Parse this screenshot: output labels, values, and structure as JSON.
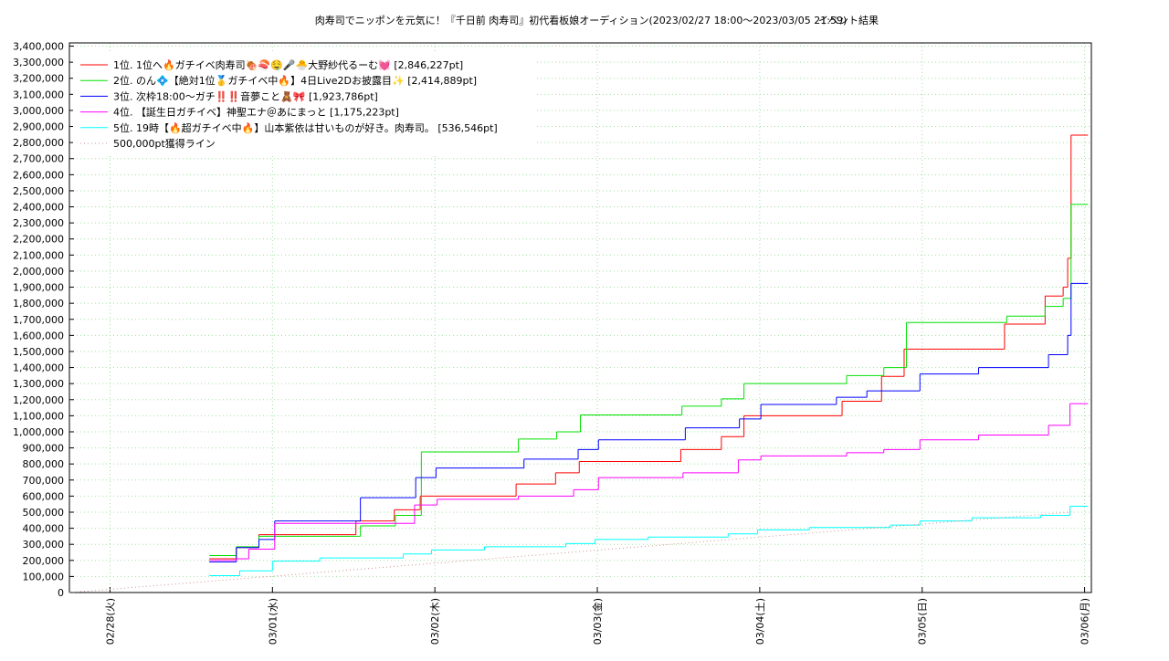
{
  "chart_data": {
    "type": "line",
    "title": "肉寿司でニッポンを元気に！『千日前 肉寿司』初代看板娘オーディション(2023/02/27 18:00～2023/03/05 21:59)",
    "subtitle": "イベント結果",
    "xlim": [
      "02/27 18:00",
      "03/06 01:00"
    ],
    "xticks": [
      {
        "value": "02/28 00:00",
        "label": "02/28(火)"
      },
      {
        "value": "03/01 00:00",
        "label": "03/01(水)"
      },
      {
        "value": "03/02 00:00",
        "label": "03/02(木)"
      },
      {
        "value": "03/03 00:00",
        "label": "03/03(金)"
      },
      {
        "value": "03/04 00:00",
        "label": "03/04(土)"
      },
      {
        "value": "03/05 00:00",
        "label": "03/05(日)"
      },
      {
        "value": "03/06 00:00",
        "label": "03/06(月)"
      }
    ],
    "ylim": [
      0,
      3420000
    ],
    "yticks": [
      0,
      {
        "value": 100000,
        "label": "100,000"
      },
      {
        "value": 200000,
        "label": "200,000"
      },
      {
        "value": 300000,
        "label": "300,000"
      },
      {
        "value": 400000,
        "label": "400,000"
      },
      {
        "value": 500000,
        "label": "500,000"
      },
      {
        "value": 600000,
        "label": "600,000"
      },
      {
        "value": 700000,
        "label": "700,000"
      },
      {
        "value": 800000,
        "label": "800,000"
      },
      {
        "value": 900000,
        "label": "900,000"
      },
      {
        "value": 1000000,
        "label": "1,000,000"
      },
      {
        "value": 1100000,
        "label": "1,100,000"
      },
      {
        "value": 1200000,
        "label": "1,200,000"
      },
      {
        "value": 1300000,
        "label": "1,300,000"
      },
      {
        "value": 1400000,
        "label": "1,400,000"
      },
      {
        "value": 1500000,
        "label": "1,500,000"
      },
      {
        "value": 1600000,
        "label": "1,600,000"
      },
      {
        "value": 1700000,
        "label": "1,700,000"
      },
      {
        "value": 1800000,
        "label": "1,800,000"
      },
      {
        "value": 1900000,
        "label": "1,900,000"
      },
      {
        "value": 2000000,
        "label": "2,000,000"
      },
      {
        "value": 2100000,
        "label": "2,100,000"
      },
      {
        "value": 2200000,
        "label": "2,200,000"
      },
      {
        "value": 2300000,
        "label": "2,300,000"
      },
      {
        "value": 2400000,
        "label": "2,400,000"
      },
      {
        "value": 2500000,
        "label": "2,500,000"
      },
      {
        "value": 2600000,
        "label": "2,600,000"
      },
      {
        "value": 2700000,
        "label": "2,700,000"
      },
      {
        "value": 2800000,
        "label": "2,800,000"
      },
      {
        "value": 2900000,
        "label": "2,900,000"
      },
      {
        "value": 3000000,
        "label": "3,000,000"
      },
      {
        "value": 3100000,
        "label": "3,100,000"
      },
      {
        "value": 3200000,
        "label": "3,200,000"
      },
      {
        "value": 3300000,
        "label": "3,300,000"
      },
      {
        "value": 3400000,
        "label": "3,400,000"
      }
    ],
    "grid": true,
    "legend": "top-left",
    "series": [
      {
        "name": "1位. 1位へ🔥ガチイベ肉寿司🍖🍣🤤🎤🐣大野紗代るーむ💓 [2,846,227pt]",
        "color": "#ff0000",
        "style": "steps",
        "x": [
          "02/28 14:40",
          "02/28 18:40",
          "02/28 22:00",
          "03/01 12:20",
          "03/01 18:00",
          "03/01 21:50",
          "03/02 12:00",
          "03/02 17:50",
          "03/02 21:20",
          "03/03 12:20",
          "03/03 18:20",
          "03/03 21:40",
          "03/04 12:10",
          "03/04 18:00",
          "03/04 21:20",
          "03/05 12:10",
          "03/05 18:10",
          "03/05 20:50",
          "03/05 21:30",
          "03/05 22:00",
          "03/06 00:30"
        ],
        "values": [
          210000,
          280000,
          360000,
          445000,
          515000,
          600000,
          675000,
          745000,
          815000,
          890000,
          970000,
          1100000,
          1190000,
          1345000,
          1515000,
          1670000,
          1845000,
          1900000,
          2080000,
          2846227,
          2846227
        ]
      },
      {
        "name": "2位. のん💠【絶対1位🥇ガチイベ中🔥】4日Live2Dお披露目✨ [2,414,889pt]",
        "color": "#00e000",
        "style": "steps",
        "x": [
          "02/28 14:40",
          "02/28 18:40",
          "02/28 22:00",
          "03/01 13:00",
          "03/01 18:10",
          "03/01 22:00",
          "03/02 12:20",
          "03/02 18:00",
          "03/02 21:30",
          "03/03 12:30",
          "03/03 18:20",
          "03/03 21:40",
          "03/04 12:50",
          "03/04 18:20",
          "03/04 21:40",
          "03/05 12:30",
          "03/05 18:10",
          "03/05 20:50",
          "03/05 22:00",
          "03/06 00:30"
        ],
        "values": [
          230000,
          285000,
          350000,
          415000,
          480000,
          875000,
          955000,
          1000000,
          1105000,
          1160000,
          1205000,
          1300000,
          1350000,
          1400000,
          1680000,
          1720000,
          1780000,
          1830000,
          2414889,
          2414889
        ]
      },
      {
        "name": "3位. 次枠18:00〜ガチ‼️‼️音夢こと🧸🎀 [1,923,786pt]",
        "color": "#0000ff",
        "style": "steps",
        "x": [
          "02/28 14:40",
          "02/28 18:40",
          "02/28 22:00",
          "03/01 00:20",
          "03/01 13:00",
          "03/01 21:10",
          "03/02 00:10",
          "03/02 13:10",
          "03/02 21:10",
          "03/03 00:10",
          "03/03 13:00",
          "03/03 21:00",
          "03/04 00:10",
          "03/04 11:20",
          "03/04 15:50",
          "03/04 23:40",
          "03/05 08:20",
          "03/05 18:40",
          "03/05 21:30",
          "03/05 22:00",
          "03/06 00:30"
        ],
        "values": [
          190000,
          280000,
          330000,
          445000,
          590000,
          715000,
          775000,
          830000,
          890000,
          950000,
          1025000,
          1080000,
          1170000,
          1215000,
          1255000,
          1360000,
          1400000,
          1480000,
          1600000,
          1923786,
          1923786
        ]
      },
      {
        "name": "4位. 【誕生日ガチイベ】神聖エナ＠あにまっと [1,175,223pt]",
        "color": "#ff00ff",
        "style": "steps",
        "x": [
          "02/28 14:40",
          "02/28 18:40",
          "02/28 20:30",
          "03/01 00:20",
          "03/01 21:00",
          "03/02 00:20",
          "03/02 12:20",
          "03/02 20:30",
          "03/03 00:10",
          "03/03 12:40",
          "03/03 20:50",
          "03/04 00:10",
          "03/04 12:50",
          "03/04 18:20",
          "03/04 23:40",
          "03/05 08:20",
          "03/05 18:40",
          "03/05 21:50",
          "03/06 00:30"
        ],
        "values": [
          200000,
          210000,
          270000,
          430000,
          545000,
          580000,
          600000,
          640000,
          715000,
          745000,
          825000,
          850000,
          870000,
          890000,
          950000,
          980000,
          1040000,
          1175223,
          1175223
        ]
      },
      {
        "name": "5位. 19時【🔥超ガチイベ中🔥】山本紫依は甘いものが好き。肉寿司。 [536,546pt]",
        "color": "#00ffff",
        "style": "steps",
        "x": [
          "02/28 14:40",
          "02/28 19:10",
          "03/01 00:00",
          "03/01 07:00",
          "03/01 19:20",
          "03/01 23:30",
          "03/02 07:20",
          "03/02 19:20",
          "03/02 23:40",
          "03/03 07:30",
          "03/03 19:20",
          "03/03 23:40",
          "03/04 07:20",
          "03/04 19:20",
          "03/04 23:40",
          "03/05 07:20",
          "03/05 17:30",
          "03/05 21:50",
          "03/06 00:30"
        ],
        "values": [
          105000,
          135000,
          195000,
          215000,
          240000,
          265000,
          285000,
          305000,
          330000,
          345000,
          365000,
          390000,
          405000,
          420000,
          445000,
          465000,
          480000,
          536546,
          536546
        ]
      },
      {
        "name": "500,000pt獲得ライン",
        "color": "#d09090",
        "style": "dotted",
        "x": [
          "02/27 18:00",
          "03/05 21:59"
        ],
        "values": [
          0,
          500000
        ]
      }
    ]
  }
}
